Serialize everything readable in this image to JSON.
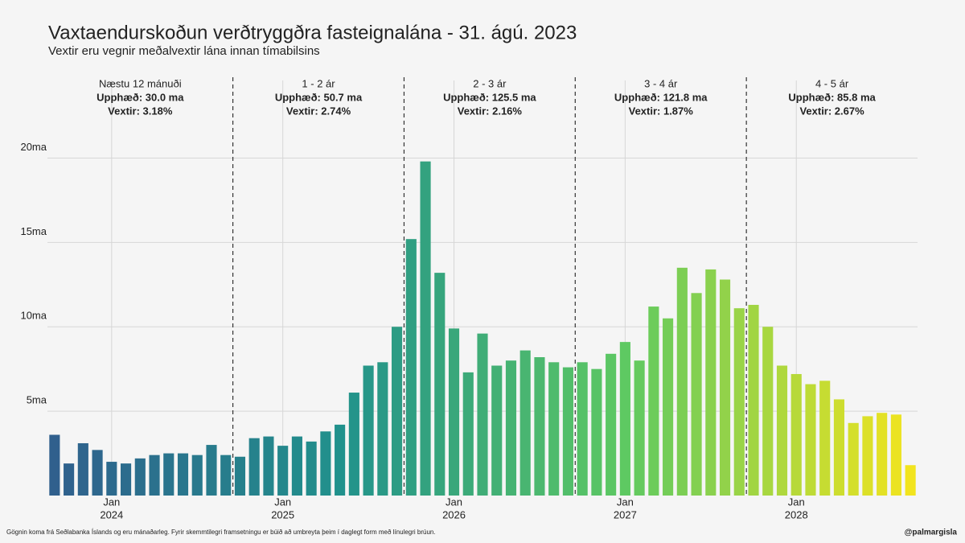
{
  "chart_data": {
    "type": "bar",
    "title": "Vaxtaendurskoðun verðtryggðra fasteignalána - 31. ágú. 2023",
    "subtitle": "Vextir eru vegnir meðalvextir lána innan tímabilsins",
    "footnote": "Gögnin koma frá Seðlabanka Íslands og eru mánaðarleg. Fyrir skemmtilegri framsetningu er búið að umbreyta þeim í daglegt form með línulegri brúun.",
    "credit": "@palmargisla",
    "x": [
      "2023-09",
      "2023-10",
      "2023-11",
      "2023-12",
      "2024-01",
      "2024-02",
      "2024-03",
      "2024-04",
      "2024-05",
      "2024-06",
      "2024-07",
      "2024-08",
      "2024-09",
      "2024-10",
      "2024-11",
      "2024-12",
      "2025-01",
      "2025-02",
      "2025-03",
      "2025-04",
      "2025-05",
      "2025-06",
      "2025-07",
      "2025-08",
      "2025-09",
      "2025-10",
      "2025-11",
      "2025-12",
      "2026-01",
      "2026-02",
      "2026-03",
      "2026-04",
      "2026-05",
      "2026-06",
      "2026-07",
      "2026-08",
      "2026-09",
      "2026-10",
      "2026-11",
      "2026-12",
      "2027-01",
      "2027-02",
      "2027-03",
      "2027-04",
      "2027-05",
      "2027-06",
      "2027-07",
      "2027-08",
      "2027-09",
      "2027-10",
      "2027-11",
      "2027-12",
      "2028-01",
      "2028-02",
      "2028-03",
      "2028-04",
      "2028-05",
      "2028-06",
      "2028-07",
      "2028-08",
      "2028-09"
    ],
    "values": [
      3.6,
      1.9,
      3.1,
      2.7,
      2.0,
      1.9,
      2.2,
      2.4,
      2.5,
      2.5,
      2.4,
      3.0,
      2.4,
      2.3,
      3.4,
      3.5,
      2.95,
      3.5,
      3.2,
      3.8,
      4.2,
      6.1,
      7.7,
      7.9,
      10.0,
      15.2,
      19.8,
      13.2,
      9.9,
      7.3,
      9.6,
      7.7,
      8.0,
      8.6,
      8.2,
      7.9,
      7.6,
      7.9,
      7.5,
      8.4,
      9.1,
      8.0,
      11.2,
      10.5,
      13.5,
      12.0,
      13.4,
      12.8,
      11.1,
      11.3,
      10.0,
      7.7,
      7.2,
      6.6,
      6.8,
      5.7,
      4.3,
      4.7,
      4.9,
      4.8,
      1.8
    ],
    "color_scale": [
      "#30608d",
      "#21918c",
      "#5ec962",
      "#f2e41e"
    ],
    "ylim": [
      0,
      24.6
    ],
    "yticks": [
      {
        "value": 5,
        "label": "5ma"
      },
      {
        "value": 10,
        "label": "10ma"
      },
      {
        "value": 15,
        "label": "15ma"
      },
      {
        "value": 20,
        "label": "20ma"
      }
    ],
    "xticks": [
      {
        "value": "2024-01",
        "label": "Jan"
      },
      {
        "value": "2025-01",
        "label": "Jan"
      },
      {
        "value": "2026-01",
        "label": "Jan"
      },
      {
        "value": "2027-01",
        "label": "Jan"
      },
      {
        "value": "2028-01",
        "label": "Jan"
      }
    ],
    "xtick_years": [
      "2024",
      "2025",
      "2026",
      "2027",
      "2028"
    ],
    "grid": true,
    "sections": [
      {
        "label": "Næstu 12 mánuði",
        "amount": "Upphæð: 30.0 ma",
        "rate": "Vextir: 3.18%",
        "end": "2024-09"
      },
      {
        "label": "1 - 2 ár",
        "amount": "Upphæð: 50.7 ma",
        "rate": "Vextir: 2.74%",
        "end": "2025-09"
      },
      {
        "label": "2 - 3 ár",
        "amount": "Upphæð: 125.5 ma",
        "rate": "Vextir: 2.16%",
        "end": "2026-09"
      },
      {
        "label": "3 - 4 ár",
        "amount": "Upphæð: 121.8 ma",
        "rate": "Vextir: 1.87%",
        "end": "2027-09"
      },
      {
        "label": "4 - 5 ár",
        "amount": "Upphæð: 85.8 ma",
        "rate": "Vextir: 2.67%",
        "end": "2028-09"
      }
    ]
  }
}
